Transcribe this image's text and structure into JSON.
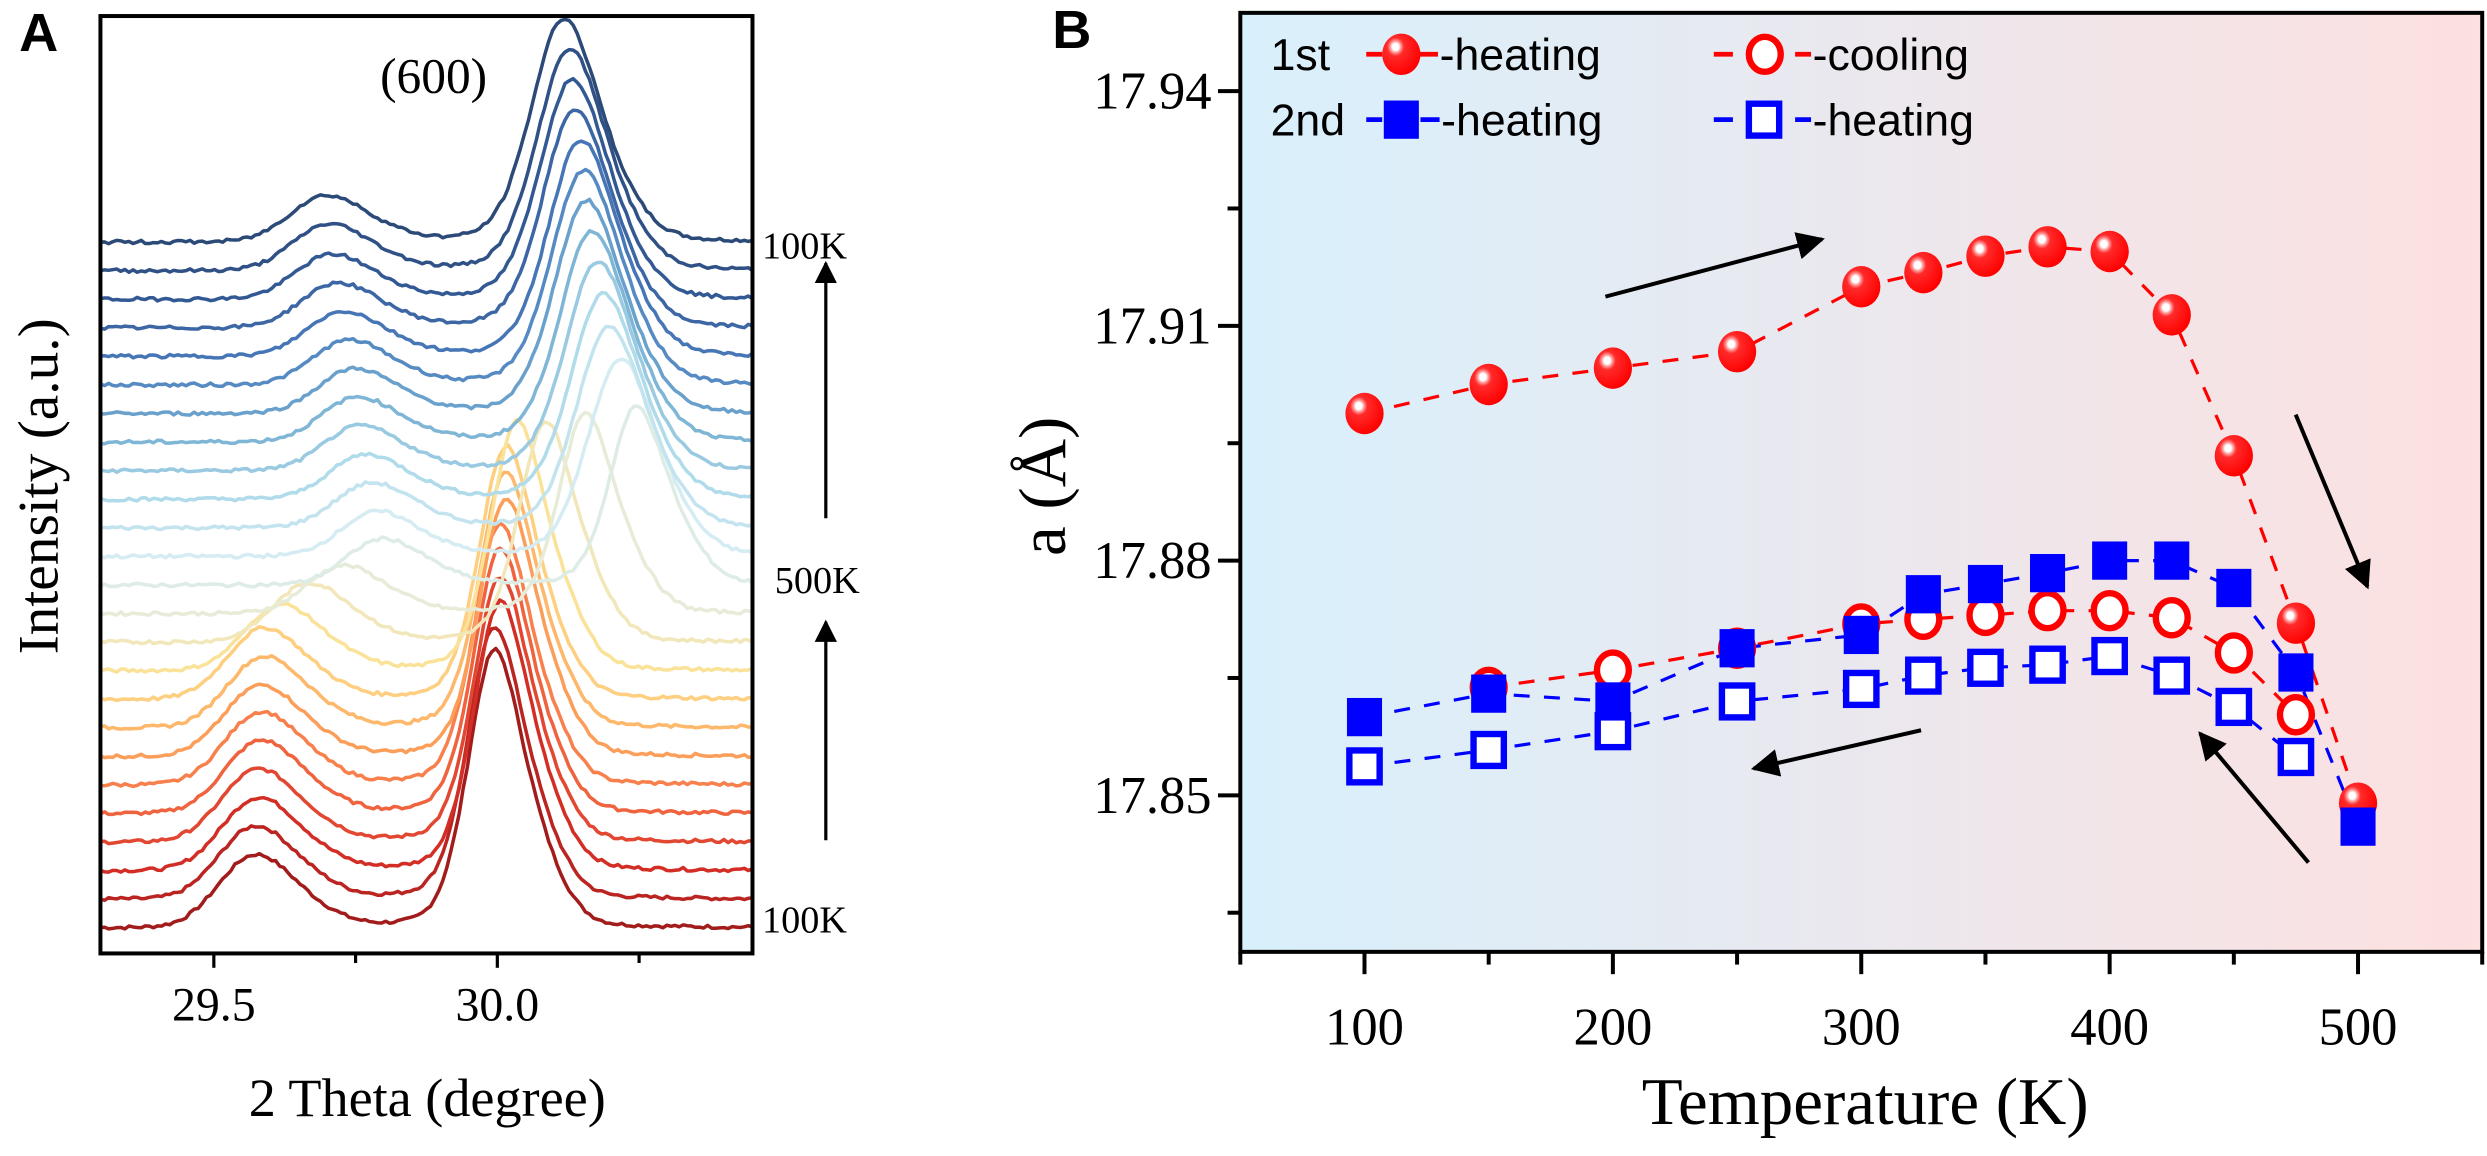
{
  "colors": {
    "heating_red": "#ff0000",
    "blue": "#0000ff",
    "bg_left": "#d8f0fc",
    "bg_right": "#fde0e0",
    "axis": "#000000",
    "colormap_stops": [
      "#a31c1c",
      "#d73027",
      "#f46d43",
      "#fdae61",
      "#fee090",
      "#e8ecd8",
      "#d4ecf4",
      "#abd9e9",
      "#74add1",
      "#4a7cbc",
      "#345a96",
      "#2c4a78"
    ]
  },
  "chart_data": [
    {
      "panel_label": "A",
      "type": "line",
      "xlabel": "2 Theta (degree)",
      "ylabel": "Intensity (a.u.)",
      "xlim": [
        29.3,
        30.45
      ],
      "x_ticks": [
        29.5,
        30.0
      ],
      "x_tick_labels": [
        "29.5",
        "30.0"
      ],
      "x_minor_ticks": [
        29.75,
        30.25
      ],
      "annotation": "(600)",
      "temperature_labels": [
        {
          "text": "100K",
          "position": "bottom"
        },
        {
          "text": "500K",
          "position": "middle"
        },
        {
          "text": "100K",
          "position": "top"
        }
      ],
      "arrows": [
        "up (100K to 500K)",
        "up (500K to 100K)"
      ],
      "stacked_offset": true,
      "curves_bottom_to_top": [
        {
          "main_peak": 29.99,
          "main_height": 157,
          "minor_peak": 29.565,
          "minor_height": 41
        },
        {
          "main_peak": 29.99,
          "main_height": 154,
          "minor_peak": 29.565,
          "minor_height": 41
        },
        {
          "main_peak": 30.0,
          "main_height": 152,
          "minor_peak": 29.57,
          "minor_height": 41
        },
        {
          "main_peak": 30.0,
          "main_height": 150,
          "minor_peak": 29.57,
          "minor_height": 41
        },
        {
          "main_peak": 30.0,
          "main_height": 150,
          "minor_peak": 29.575,
          "minor_height": 41
        },
        {
          "main_peak": 30.0,
          "main_height": 148,
          "minor_peak": 29.575,
          "minor_height": 41
        },
        {
          "main_peak": 30.01,
          "main_height": 146,
          "minor_peak": 29.575,
          "minor_height": 40
        },
        {
          "main_peak": 30.01,
          "main_height": 145,
          "minor_peak": 29.58,
          "minor_height": 40
        },
        {
          "main_peak": 30.01,
          "main_height": 143,
          "minor_peak": 29.58,
          "minor_height": 40
        },
        {
          "main_peak": 30.03,
          "main_height": 141,
          "minor_peak": 29.61,
          "minor_height": 37
        },
        {
          "main_peak": 30.08,
          "main_height": 125,
          "minor_peak": 29.66,
          "minor_height": 33
        },
        {
          "main_peak": 30.15,
          "main_height": 113,
          "minor_peak": 29.72,
          "minor_height": 27
        },
        {
          "main_peak": 30.24,
          "main_height": 101,
          "minor_peak": 29.79,
          "minor_height": 26
        },
        {
          "main_peak": 30.21,
          "main_height": 108,
          "minor_peak": 29.78,
          "minor_height": 25
        },
        {
          "main_peak": 30.19,
          "main_height": 110,
          "minor_peak": 29.77,
          "minor_height": 25
        },
        {
          "main_peak": 30.18,
          "main_height": 112,
          "minor_peak": 29.76,
          "minor_height": 25
        },
        {
          "main_peak": 30.17,
          "main_height": 114,
          "minor_peak": 29.75,
          "minor_height": 25
        },
        {
          "main_peak": 30.16,
          "main_height": 115,
          "minor_peak": 29.745,
          "minor_height": 25
        },
        {
          "main_peak": 30.15,
          "main_height": 116,
          "minor_peak": 29.74,
          "minor_height": 25
        },
        {
          "main_peak": 30.145,
          "main_height": 117,
          "minor_peak": 29.73,
          "minor_height": 25
        },
        {
          "main_peak": 30.14,
          "main_height": 118,
          "minor_peak": 29.72,
          "minor_height": 25
        },
        {
          "main_peak": 30.13,
          "main_height": 119,
          "minor_peak": 29.71,
          "minor_height": 25
        },
        {
          "main_peak": 30.125,
          "main_height": 120,
          "minor_peak": 29.7,
          "minor_height": 25
        },
        {
          "main_peak": 30.12,
          "main_height": 121,
          "minor_peak": 29.695,
          "minor_height": 26
        },
        {
          "main_peak": 30.11,
          "main_height": 122,
          "minor_peak": 29.69,
          "minor_height": 26
        }
      ]
    },
    {
      "panel_label": "B",
      "type": "scatter",
      "xlabel": "Temperature (K)",
      "ylabel": "a (Å)",
      "xlim": [
        50,
        550
      ],
      "ylim": [
        17.83,
        17.95
      ],
      "x_ticks": [
        100,
        200,
        300,
        400,
        500
      ],
      "x_tick_labels": [
        "100",
        "200",
        "300",
        "400",
        "500"
      ],
      "x_minor_ticks": [
        50,
        150,
        250,
        350,
        450,
        550
      ],
      "y_ticks": [
        17.85,
        17.88,
        17.91,
        17.94
      ],
      "y_tick_labels": [
        "17.85",
        "17.88",
        "17.91",
        "17.94"
      ],
      "y_minor_ticks": [
        17.835,
        17.865,
        17.895,
        17.925
      ],
      "background": "horizontal gradient blue to red",
      "legend_placement": "top-left",
      "legend": {
        "row1_label": "1st",
        "row2_label": "2nd",
        "entries": [
          "-heating",
          "-cooling",
          "-heating",
          "-heating"
        ]
      },
      "series": [
        {
          "legend": "1st -heating",
          "marker": "filled-circle",
          "color": "#ff0000",
          "x": [
            100,
            150,
            200,
            250,
            300,
            325,
            350,
            375,
            400,
            425,
            450,
            475,
            500
          ],
          "y": [
            17.8988,
            17.9025,
            17.9046,
            17.9067,
            17.915,
            17.9168,
            17.9189,
            17.9201,
            17.9195,
            17.9114,
            17.8934,
            17.872,
            17.849
          ]
        },
        {
          "legend": "1st -cooling",
          "marker": "open-circle",
          "color": "#ff0000",
          "x": [
            150,
            200,
            250,
            300,
            325,
            350,
            375,
            400,
            425,
            450,
            475
          ],
          "y": [
            17.8638,
            17.866,
            17.8688,
            17.8719,
            17.8725,
            17.873,
            17.8736,
            17.8736,
            17.8727,
            17.8682,
            17.8603
          ]
        },
        {
          "legend": "2nd -heating (open)",
          "marker": "open-square",
          "color": "#0000ff",
          "x": [
            100,
            150,
            200,
            250,
            300,
            325,
            350,
            375,
            400,
            425,
            450,
            475
          ],
          "y": [
            17.8537,
            17.8558,
            17.8582,
            17.862,
            17.8636,
            17.8653,
            17.8663,
            17.8667,
            17.8678,
            17.8653,
            17.8613,
            17.8549
          ]
        },
        {
          "legend": "2nd -heating (filled)",
          "marker": "filled-square",
          "color": "#0000ff",
          "x": [
            100,
            150,
            200,
            250,
            300,
            325,
            350,
            375,
            400,
            425,
            450,
            475,
            500
          ],
          "y": [
            17.86,
            17.863,
            17.862,
            17.8688,
            17.8705,
            17.8757,
            17.877,
            17.8784,
            17.88,
            17.88,
            17.8765,
            17.8657,
            17.846
          ]
        }
      ],
      "arrows": [
        "up-right (heating)",
        "down (cooling)",
        "up-left",
        "left"
      ]
    }
  ]
}
